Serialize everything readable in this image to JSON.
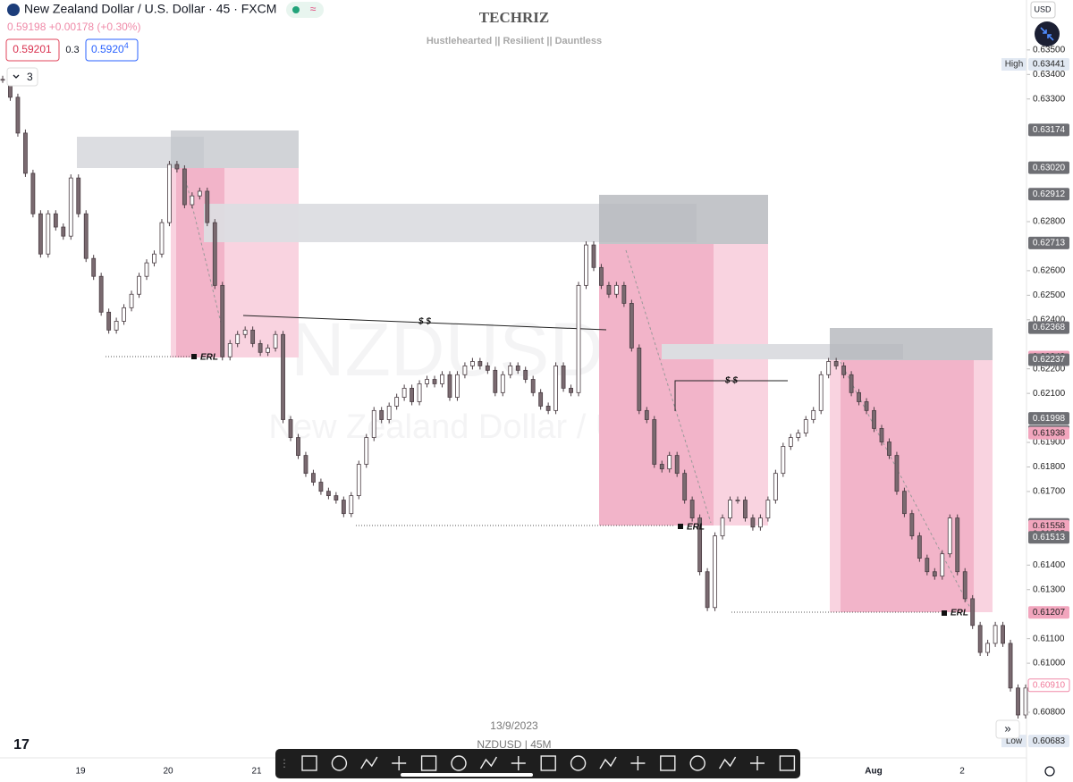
{
  "header": {
    "symbol_title": "New Zealand Dollar / U.S. Dollar · 45 · FXCM",
    "price_change": "0.59198 +0.00178 (+0.30%)",
    "sell_price": "0.59201",
    "spread": "0.3",
    "buy_price": "0.5920",
    "buy_price_sup": "4",
    "indicators_count": "3"
  },
  "watermark": {
    "brand": "TECHRIZ",
    "tagline": "Hustlehearted || Resilient || Dauntless",
    "symbol": "NZDUSD, 45",
    "description": "New Zealand Dollar / U.S. Dollar"
  },
  "currency": "USD",
  "price_scale": [
    {
      "value": 0.635,
      "label": "0.63500"
    },
    {
      "value": 0.634,
      "label": "0.63400"
    },
    {
      "value": 0.633,
      "label": "0.63300"
    },
    {
      "value": 0.628,
      "label": "0.62800"
    },
    {
      "value": 0.626,
      "label": "0.62600"
    },
    {
      "value": 0.625,
      "label": "0.62500"
    },
    {
      "value": 0.624,
      "label": "0.62400"
    },
    {
      "value": 0.622,
      "label": "0.62200"
    },
    {
      "value": 0.621,
      "label": "0.62100"
    },
    {
      "value": 0.619,
      "label": "0.61900"
    },
    {
      "value": 0.618,
      "label": "0.61800"
    },
    {
      "value": 0.617,
      "label": "0.61700"
    },
    {
      "value": 0.614,
      "label": "0.61400"
    },
    {
      "value": 0.613,
      "label": "0.61300"
    },
    {
      "value": 0.611,
      "label": "0.61100"
    },
    {
      "value": 0.61,
      "label": "0.61000"
    },
    {
      "value": 0.608,
      "label": "0.60800"
    }
  ],
  "price_tags": [
    {
      "value": 0.63441,
      "label": "0.63441",
      "caption": "High",
      "color": "#e1e8f2"
    },
    {
      "value": 0.63174,
      "label": "0.63174",
      "color": "#6e6f74"
    },
    {
      "value": 0.6302,
      "label": "0.63020",
      "color": "#6e6f74"
    },
    {
      "value": 0.62912,
      "label": "0.62912",
      "color": "#6e6f74"
    },
    {
      "value": 0.62713,
      "label": "0.62713",
      "color": "#6e6f74"
    },
    {
      "value": 0.62368,
      "label": "0.62368",
      "color": "#6e6f74"
    },
    {
      "value": 0.62248,
      "label": "0.62248",
      "color": "#f2a5bd"
    },
    {
      "value": 0.62237,
      "label": "0.62237",
      "color": "#6e6f74"
    },
    {
      "value": 0.61998,
      "label": "0.61998",
      "color": "#6e6f74"
    },
    {
      "value": 0.61945,
      "label": "0.61945",
      "color": "#6e6f74"
    },
    {
      "value": 0.61938,
      "label": "0.61938",
      "color": "#f2a5bd"
    },
    {
      "value": 0.61566,
      "label": "0.61566",
      "color": "#6e6f74"
    },
    {
      "value": 0.61558,
      "label": "0.61558",
      "color": "#f2a5bd"
    },
    {
      "value": 0.61525,
      "label": "0.61525",
      "color": "#f2a5bd"
    },
    {
      "value": 0.61513,
      "label": "0.61513",
      "color": "#6e6f74"
    },
    {
      "value": 0.61207,
      "label": "0.61207",
      "color": "#f2a5bd"
    },
    {
      "value": 0.6091,
      "label": "0.60910",
      "color": "#ffffff"
    },
    {
      "value": 0.60683,
      "label": "0.60683",
      "caption": "Low",
      "color": "#e1e8f2"
    }
  ],
  "time_scale": [
    "19",
    "20",
    "21",
    "Aug",
    "2"
  ],
  "annotations": {
    "erl_labels": [
      "ERL",
      "ERL",
      "ERL"
    ],
    "liquidity_labels": [
      "$ $",
      "$ $"
    ]
  },
  "footer": {
    "date": "13/9/2023",
    "symbol_interval": "NZDUSD | 45M"
  },
  "series": {
    "closes": [
      0.6338,
      0.63307,
      0.63161,
      0.62997,
      0.62832,
      0.62668,
      0.62832,
      0.62778,
      0.62741,
      0.62978,
      0.62832,
      0.6265,
      0.62577,
      0.62431,
      0.62358,
      0.62394,
      0.62449,
      0.62504,
      0.62577,
      0.62632,
      0.62668,
      0.62796,
      0.63033,
      0.63015,
      0.62869,
      0.62905,
      0.62924,
      0.62796,
      0.6254,
      0.62249,
      0.62303,
      0.6234,
      0.62358,
      0.62303,
      0.62267,
      0.62285,
      0.6234,
      0.61993,
      0.6192,
      0.61847,
      0.61774,
      0.61738,
      0.61701,
      0.61683,
      0.61665,
      0.6161,
      0.61683,
      0.61811,
      0.6192,
      0.6203,
      0.61993,
      0.62048,
      0.62084,
      0.62121,
      0.62066,
      0.62139,
      0.62157,
      0.62139,
      0.62176,
      0.62084,
      0.62176,
      0.62212,
      0.6223,
      0.62212,
      0.62194,
      0.62103,
      0.62176,
      0.62212,
      0.62194,
      0.62157,
      0.62103,
      0.62048,
      0.6203,
      0.62212,
      0.62121,
      0.62103,
      0.6254,
      0.62705,
      0.62613,
      0.6254,
      0.62504,
      0.6254,
      0.62467,
      0.62285,
      0.6203,
      0.61993,
      0.61811,
      0.61792,
      0.61847,
      0.61774,
      0.61665,
      0.61592,
      0.61373,
      0.61227,
      0.61519,
      0.61592,
      0.61665,
      0.61665,
      0.61592,
      0.61555,
      0.61592,
      0.61665,
      0.61774,
      0.61884,
      0.6192,
      0.61938,
      0.61993,
      0.6203,
      0.62176,
      0.6223,
      0.62212,
      0.62176,
      0.62103,
      0.62066,
      0.6203,
      0.61957,
      0.61902,
      0.61847,
      0.61701,
      0.6161,
      0.61519,
      0.61428,
      0.61373,
      0.61355,
      0.61446,
      0.61592,
      0.61373,
      0.61263,
      0.61154,
      0.61044,
      0.61081,
      0.61154,
      0.61081,
      0.60899,
      0.60789,
      0.60899
    ]
  }
}
